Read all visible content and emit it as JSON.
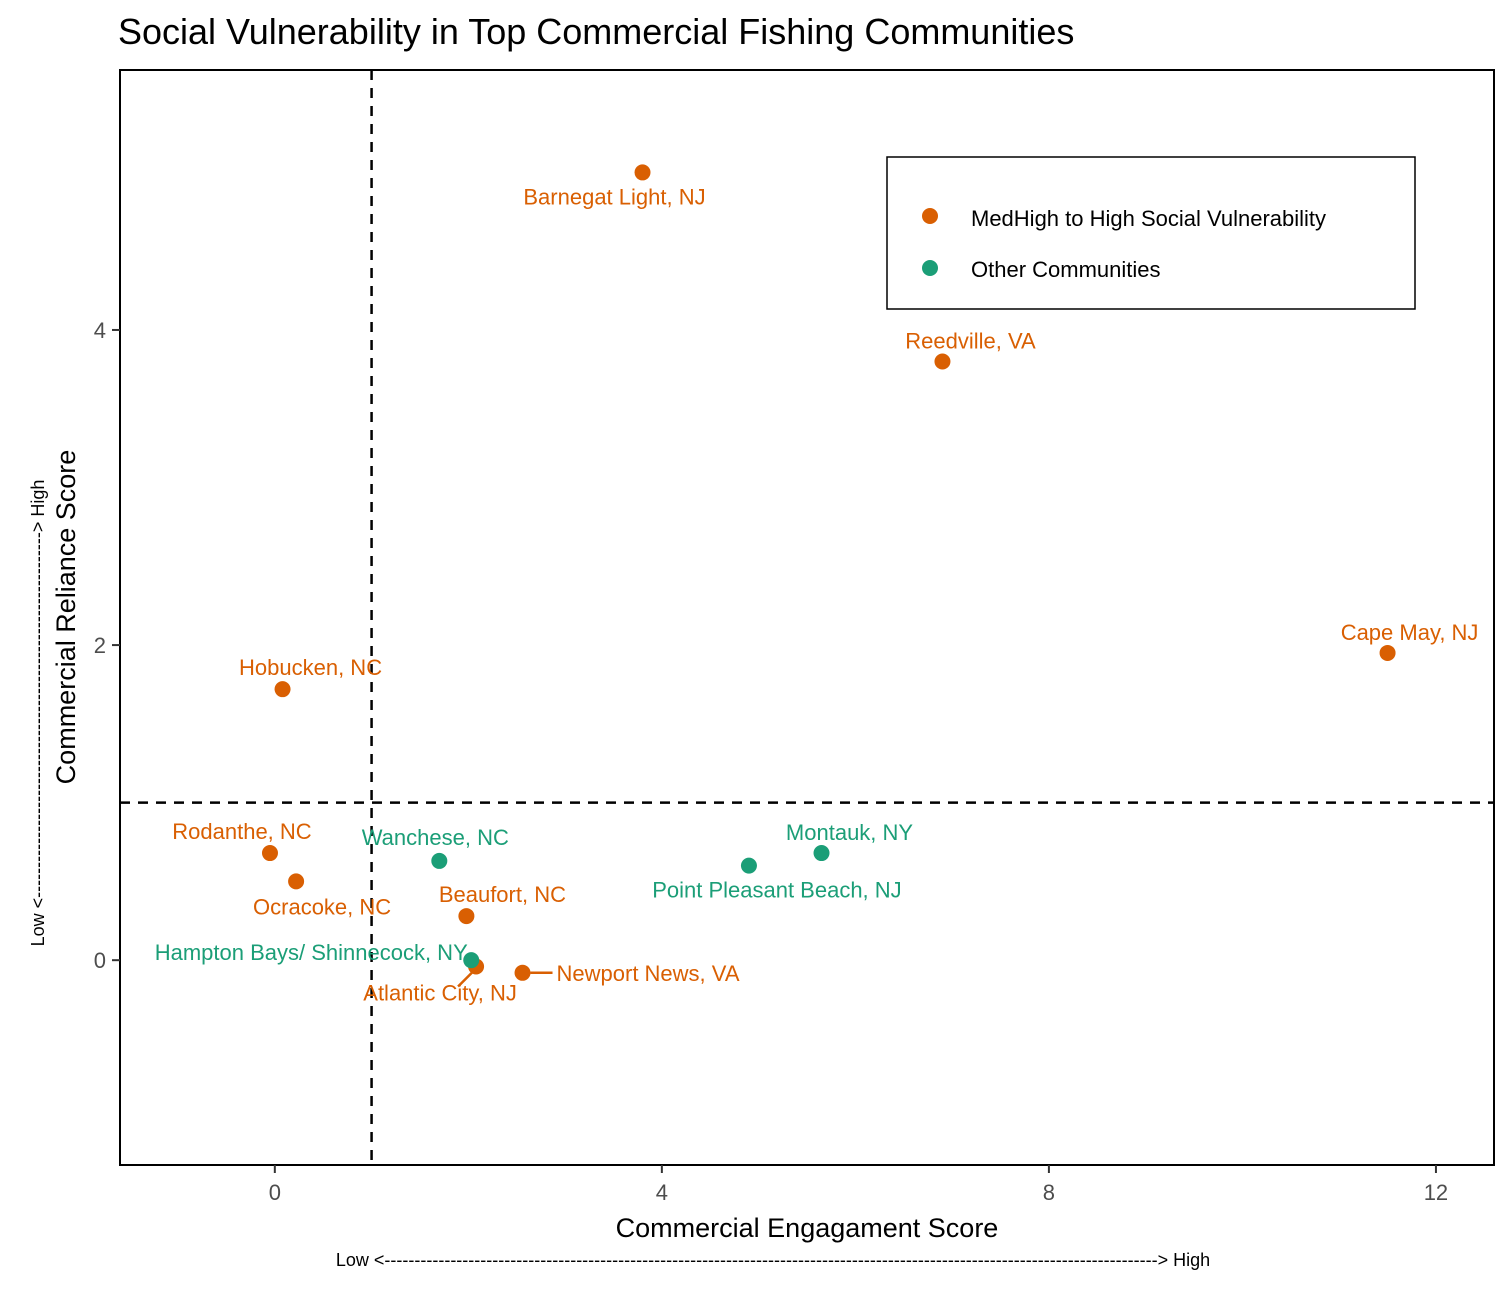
{
  "chart_data": {
    "type": "scatter",
    "title": "Social Vulnerability in Top Commercial Fishing Communities",
    "xlabel": "Commercial Engagament Score",
    "ylabel": "Commercial Reliance Score",
    "x_arrow": "Low <---------------------------------------------------------------------------------------------------------------------------------> High",
    "y_arrow": "Low <-------------------------------------------------------------> High",
    "xlim": [
      -1.6,
      12.6
    ],
    "ylim": [
      -1.3,
      5.65
    ],
    "x_ticks": [
      0,
      4,
      8,
      12
    ],
    "y_ticks": [
      0,
      2,
      4
    ],
    "reference_lines": {
      "x": 1.0,
      "y": 1.0,
      "style": "dashed"
    },
    "grid": false,
    "legend_position": "top-right",
    "series": [
      {
        "name": "MedHigh to High Social Vulnerability",
        "color": "#D95F02",
        "points": [
          {
            "label": "Barnegat Light, NJ",
            "x": 3.8,
            "y": 5.0
          },
          {
            "label": "Reedville, VA",
            "x": 6.9,
            "y": 3.8
          },
          {
            "label": "Cape May, NJ",
            "x": 11.5,
            "y": 1.95
          },
          {
            "label": "Hobucken, NC",
            "x": 0.08,
            "y": 1.72
          },
          {
            "label": "Rodanthe, NC",
            "x": -0.05,
            "y": 0.68
          },
          {
            "label": "Ocracoke, NC",
            "x": 0.22,
            "y": 0.5
          },
          {
            "label": "Beaufort, NC",
            "x": 1.98,
            "y": 0.28
          },
          {
            "label": "Atlantic City, NJ",
            "x": 2.08,
            "y": -0.04
          },
          {
            "label": "Newport News, VA",
            "x": 2.56,
            "y": -0.08
          }
        ]
      },
      {
        "name": "Other Communities",
        "color": "#1B9E77",
        "points": [
          {
            "label": "Wanchese, NC",
            "x": 1.7,
            "y": 0.63
          },
          {
            "label": "Montauk, NY",
            "x": 5.65,
            "y": 0.68
          },
          {
            "label": "Point Pleasant Beach, NJ",
            "x": 4.9,
            "y": 0.6
          },
          {
            "label": "Hampton Bays/ Shinnecock, NY",
            "x": 2.03,
            "y": 0.0
          }
        ]
      }
    ]
  }
}
